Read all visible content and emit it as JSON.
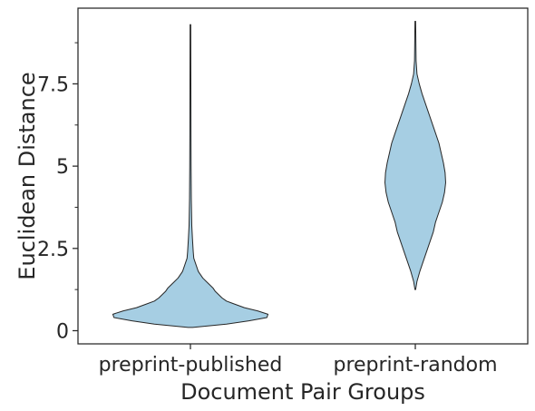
{
  "chart_data": {
    "type": "violin",
    "title": "",
    "xlabel": "Document Pair Groups",
    "ylabel": "Euclidean Distance",
    "ylim": [
      -0.4,
      9.8
    ],
    "yticks": [
      0,
      2.5,
      5,
      7.5
    ],
    "ytick_labels": [
      "0",
      "2.5",
      "5",
      "7.5"
    ],
    "yminor_ticks": [
      1.25,
      3.75,
      6.25,
      8.75
    ],
    "grid": false,
    "legend": "none",
    "fill_color": "#a6cee3",
    "edge_color": "#262626",
    "categories": [
      "preprint-published",
      "preprint-random"
    ],
    "violins": [
      {
        "category": "preprint-published",
        "min": 0.1,
        "max": 9.3,
        "profile": [
          [
            0.1,
            0.02
          ],
          [
            0.2,
            0.32
          ],
          [
            0.3,
            0.52
          ],
          [
            0.4,
            0.68
          ],
          [
            0.5,
            0.69
          ],
          [
            0.6,
            0.6
          ],
          [
            0.7,
            0.48
          ],
          [
            0.8,
            0.4
          ],
          [
            0.9,
            0.32
          ],
          [
            1.0,
            0.28
          ],
          [
            1.1,
            0.25
          ],
          [
            1.2,
            0.22
          ],
          [
            1.3,
            0.2
          ],
          [
            1.4,
            0.17
          ],
          [
            1.5,
            0.14
          ],
          [
            1.6,
            0.11
          ],
          [
            1.7,
            0.09
          ],
          [
            1.8,
            0.07
          ],
          [
            2.0,
            0.05
          ],
          [
            2.2,
            0.03
          ],
          [
            2.4,
            0.025
          ],
          [
            2.8,
            0.018
          ],
          [
            3.2,
            0.012
          ],
          [
            4.0,
            0.008
          ],
          [
            5.0,
            0.006
          ],
          [
            6.0,
            0.005
          ],
          [
            7.5,
            0.004
          ],
          [
            9.3,
            0.003
          ]
        ]
      },
      {
        "category": "preprint-random",
        "min": 1.25,
        "max": 9.4,
        "profile": [
          [
            1.25,
            0.003
          ],
          [
            1.5,
            0.015
          ],
          [
            1.8,
            0.04
          ],
          [
            2.1,
            0.07
          ],
          [
            2.4,
            0.1
          ],
          [
            2.7,
            0.13
          ],
          [
            3.0,
            0.16
          ],
          [
            3.3,
            0.18
          ],
          [
            3.6,
            0.21
          ],
          [
            3.9,
            0.24
          ],
          [
            4.2,
            0.26
          ],
          [
            4.5,
            0.27
          ],
          [
            4.8,
            0.265
          ],
          [
            5.1,
            0.25
          ],
          [
            5.4,
            0.23
          ],
          [
            5.7,
            0.21
          ],
          [
            6.0,
            0.18
          ],
          [
            6.3,
            0.15
          ],
          [
            6.6,
            0.12
          ],
          [
            6.9,
            0.09
          ],
          [
            7.2,
            0.06
          ],
          [
            7.5,
            0.035
          ],
          [
            7.8,
            0.015
          ],
          [
            8.2,
            0.007
          ],
          [
            8.8,
            0.005
          ],
          [
            9.4,
            0.003
          ]
        ]
      }
    ]
  }
}
